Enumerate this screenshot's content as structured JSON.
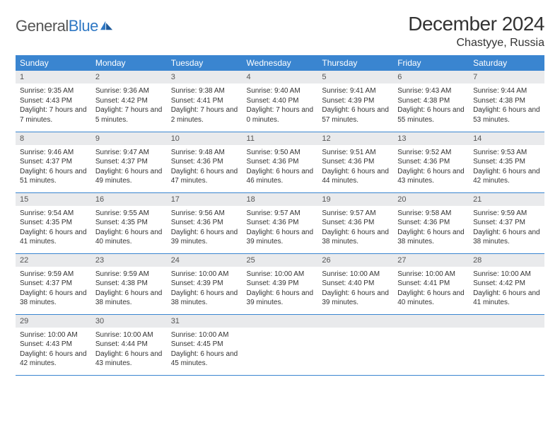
{
  "brand": {
    "word1": "General",
    "word2": "Blue"
  },
  "title": "December 2024",
  "location": "Chastyye, Russia",
  "colors": {
    "header_bg": "#3a85d0",
    "header_fg": "#ffffff",
    "daynum_bg": "#e9eaec",
    "row_border": "#3a85d0",
    "logo_blue": "#2f78c4",
    "text": "#333333",
    "bg": "#ffffff"
  },
  "day_headers": [
    "Sunday",
    "Monday",
    "Tuesday",
    "Wednesday",
    "Thursday",
    "Friday",
    "Saturday"
  ],
  "weeks": [
    [
      {
        "n": "1",
        "sr": "9:35 AM",
        "ss": "4:43 PM",
        "dh": "7",
        "dm": "7"
      },
      {
        "n": "2",
        "sr": "9:36 AM",
        "ss": "4:42 PM",
        "dh": "7",
        "dm": "5"
      },
      {
        "n": "3",
        "sr": "9:38 AM",
        "ss": "4:41 PM",
        "dh": "7",
        "dm": "2"
      },
      {
        "n": "4",
        "sr": "9:40 AM",
        "ss": "4:40 PM",
        "dh": "7",
        "dm": "0"
      },
      {
        "n": "5",
        "sr": "9:41 AM",
        "ss": "4:39 PM",
        "dh": "6",
        "dm": "57"
      },
      {
        "n": "6",
        "sr": "9:43 AM",
        "ss": "4:38 PM",
        "dh": "6",
        "dm": "55"
      },
      {
        "n": "7",
        "sr": "9:44 AM",
        "ss": "4:38 PM",
        "dh": "6",
        "dm": "53"
      }
    ],
    [
      {
        "n": "8",
        "sr": "9:46 AM",
        "ss": "4:37 PM",
        "dh": "6",
        "dm": "51"
      },
      {
        "n": "9",
        "sr": "9:47 AM",
        "ss": "4:37 PM",
        "dh": "6",
        "dm": "49"
      },
      {
        "n": "10",
        "sr": "9:48 AM",
        "ss": "4:36 PM",
        "dh": "6",
        "dm": "47"
      },
      {
        "n": "11",
        "sr": "9:50 AM",
        "ss": "4:36 PM",
        "dh": "6",
        "dm": "46"
      },
      {
        "n": "12",
        "sr": "9:51 AM",
        "ss": "4:36 PM",
        "dh": "6",
        "dm": "44"
      },
      {
        "n": "13",
        "sr": "9:52 AM",
        "ss": "4:36 PM",
        "dh": "6",
        "dm": "43"
      },
      {
        "n": "14",
        "sr": "9:53 AM",
        "ss": "4:35 PM",
        "dh": "6",
        "dm": "42"
      }
    ],
    [
      {
        "n": "15",
        "sr": "9:54 AM",
        "ss": "4:35 PM",
        "dh": "6",
        "dm": "41"
      },
      {
        "n": "16",
        "sr": "9:55 AM",
        "ss": "4:35 PM",
        "dh": "6",
        "dm": "40"
      },
      {
        "n": "17",
        "sr": "9:56 AM",
        "ss": "4:36 PM",
        "dh": "6",
        "dm": "39"
      },
      {
        "n": "18",
        "sr": "9:57 AM",
        "ss": "4:36 PM",
        "dh": "6",
        "dm": "39"
      },
      {
        "n": "19",
        "sr": "9:57 AM",
        "ss": "4:36 PM",
        "dh": "6",
        "dm": "38"
      },
      {
        "n": "20",
        "sr": "9:58 AM",
        "ss": "4:36 PM",
        "dh": "6",
        "dm": "38"
      },
      {
        "n": "21",
        "sr": "9:59 AM",
        "ss": "4:37 PM",
        "dh": "6",
        "dm": "38"
      }
    ],
    [
      {
        "n": "22",
        "sr": "9:59 AM",
        "ss": "4:37 PM",
        "dh": "6",
        "dm": "38"
      },
      {
        "n": "23",
        "sr": "9:59 AM",
        "ss": "4:38 PM",
        "dh": "6",
        "dm": "38"
      },
      {
        "n": "24",
        "sr": "10:00 AM",
        "ss": "4:39 PM",
        "dh": "6",
        "dm": "38"
      },
      {
        "n": "25",
        "sr": "10:00 AM",
        "ss": "4:39 PM",
        "dh": "6",
        "dm": "39"
      },
      {
        "n": "26",
        "sr": "10:00 AM",
        "ss": "4:40 PM",
        "dh": "6",
        "dm": "39"
      },
      {
        "n": "27",
        "sr": "10:00 AM",
        "ss": "4:41 PM",
        "dh": "6",
        "dm": "40"
      },
      {
        "n": "28",
        "sr": "10:00 AM",
        "ss": "4:42 PM",
        "dh": "6",
        "dm": "41"
      }
    ],
    [
      {
        "n": "29",
        "sr": "10:00 AM",
        "ss": "4:43 PM",
        "dh": "6",
        "dm": "42"
      },
      {
        "n": "30",
        "sr": "10:00 AM",
        "ss": "4:44 PM",
        "dh": "6",
        "dm": "43"
      },
      {
        "n": "31",
        "sr": "10:00 AM",
        "ss": "4:45 PM",
        "dh": "6",
        "dm": "45"
      },
      null,
      null,
      null,
      null
    ]
  ],
  "labels": {
    "sunrise": "Sunrise:",
    "sunset": "Sunset:",
    "daylight": "Daylight:",
    "hours": "hours",
    "and": "and",
    "minutes": "minutes."
  }
}
